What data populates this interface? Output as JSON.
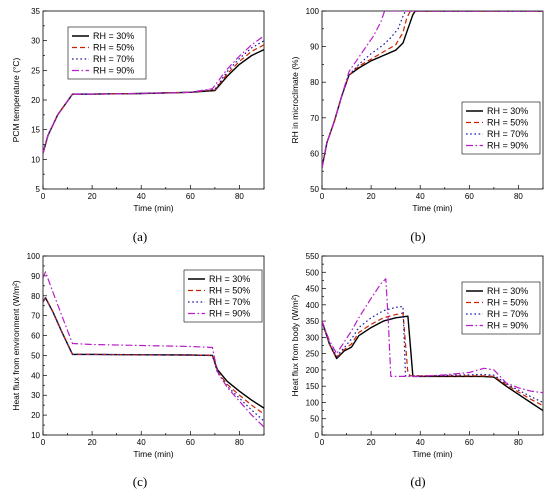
{
  "legend_labels": [
    "RH = 30%",
    "RH = 50%",
    "RH = 70%",
    "RH = 90%"
  ],
  "series_colors": [
    "#000000",
    "#cc2200",
    "#1a1aa8",
    "#b81fc8"
  ],
  "chart_data": [
    {
      "panel": "(a)",
      "type": "line",
      "xlabel": "Time (min)",
      "ylabel": "PCM temperature (°C)",
      "xlim": [
        0,
        90
      ],
      "ylim": [
        5,
        35
      ],
      "xticks": [
        0,
        20,
        40,
        60,
        80
      ],
      "yticks": [
        5,
        10,
        15,
        20,
        25,
        30,
        35
      ],
      "legend_position": "top-left",
      "grid": false,
      "series": [
        {
          "name": "RH = 30%",
          "x": [
            0,
            2,
            6,
            12,
            20,
            40,
            60,
            70,
            75,
            80,
            85,
            90
          ],
          "y": [
            11,
            14,
            17.5,
            21,
            21,
            21.1,
            21.3,
            21.6,
            24,
            26,
            27.5,
            28.5
          ]
        },
        {
          "name": "RH = 50%",
          "x": [
            0,
            2,
            6,
            12,
            20,
            40,
            60,
            70,
            75,
            80,
            85,
            90
          ],
          "y": [
            11,
            14,
            17.5,
            21,
            21,
            21.1,
            21.3,
            21.7,
            24.4,
            26.5,
            28.2,
            29.3
          ]
        },
        {
          "name": "RH = 70%",
          "x": [
            0,
            2,
            6,
            12,
            20,
            40,
            60,
            70,
            75,
            80,
            85,
            90
          ],
          "y": [
            11,
            14,
            17.5,
            21,
            21,
            21.1,
            21.3,
            21.8,
            24.8,
            27,
            28.8,
            30
          ]
        },
        {
          "name": "RH = 90%",
          "x": [
            0,
            2,
            6,
            12,
            20,
            40,
            60,
            69,
            75,
            80,
            85,
            90
          ],
          "y": [
            11,
            14,
            17.5,
            21,
            21,
            21.1,
            21.3,
            21.9,
            25.2,
            27.4,
            29.3,
            30.8
          ]
        }
      ]
    },
    {
      "panel": "(b)",
      "type": "line",
      "xlabel": "Time (min)",
      "ylabel": "RH in microclimate (%)",
      "xlim": [
        0,
        90
      ],
      "ylim": [
        50,
        100
      ],
      "xticks": [
        0,
        20,
        40,
        60,
        80
      ],
      "yticks": [
        50,
        60,
        70,
        80,
        90,
        100
      ],
      "legend_position": "bottom-right",
      "grid": false,
      "series": [
        {
          "name": "RH = 30%",
          "x": [
            0,
            2,
            5,
            8,
            11,
            15,
            20,
            25,
            30,
            33,
            35,
            37,
            38,
            50,
            90
          ],
          "y": [
            56,
            63,
            69,
            76,
            82,
            84,
            86,
            87.5,
            89,
            91,
            95,
            99,
            100,
            100,
            100
          ]
        },
        {
          "name": "RH = 50%",
          "x": [
            0,
            2,
            5,
            8,
            11,
            15,
            20,
            25,
            30,
            33,
            34.5,
            36,
            50,
            90
          ],
          "y": [
            56,
            63,
            69,
            76,
            82,
            84.5,
            86.5,
            88.5,
            90.5,
            94,
            98,
            100,
            100,
            100
          ]
        },
        {
          "name": "RH = 70%",
          "x": [
            0,
            2,
            5,
            8,
            11,
            15,
            20,
            25,
            28,
            31,
            33,
            34,
            50,
            90
          ],
          "y": [
            56,
            63,
            69,
            76,
            82,
            85,
            88,
            90.5,
            92.5,
            95,
            98.5,
            100,
            100,
            100
          ]
        },
        {
          "name": "RH = 90%",
          "x": [
            0,
            2,
            5,
            8,
            11,
            15,
            18,
            21,
            24,
            25.5,
            50,
            90
          ],
          "y": [
            56,
            63,
            69,
            76,
            83,
            87,
            90,
            93,
            97,
            100,
            100,
            100
          ]
        }
      ]
    },
    {
      "panel": "(c)",
      "type": "line",
      "xlabel": "Time (min)",
      "ylabel": "Heat flux from environment (W/m²)",
      "xlim": [
        0,
        90
      ],
      "ylim": [
        10,
        100
      ],
      "xticks": [
        0,
        20,
        40,
        60,
        80
      ],
      "yticks": [
        10,
        20,
        30,
        40,
        50,
        60,
        70,
        80,
        90,
        100
      ],
      "legend_position": "top-right",
      "grid": false,
      "series": [
        {
          "name": "RH = 30%",
          "x": [
            0,
            1,
            4,
            8,
            12,
            20,
            40,
            60,
            69,
            71,
            75,
            80,
            85,
            90
          ],
          "y": [
            77,
            79,
            72,
            61,
            50.5,
            50.5,
            50.3,
            50.2,
            50,
            43,
            37,
            32,
            27.5,
            23.5
          ]
        },
        {
          "name": "RH = 50%",
          "x": [
            0,
            1,
            4,
            8,
            12,
            20,
            40,
            60,
            69,
            71,
            75,
            80,
            85,
            90
          ],
          "y": [
            77,
            79,
            72,
            61,
            50.5,
            50.5,
            50.3,
            50.2,
            50,
            42,
            35.5,
            30,
            25,
            20.5
          ]
        },
        {
          "name": "RH = 70%",
          "x": [
            0,
            1,
            4,
            8,
            12,
            20,
            40,
            60,
            69,
            71,
            75,
            80,
            85,
            90
          ],
          "y": [
            77,
            79,
            72,
            61,
            50.5,
            50.5,
            50.3,
            50.2,
            50,
            41.5,
            34.5,
            28.5,
            22.5,
            17
          ]
        },
        {
          "name": "RH = 90%",
          "x": [
            0,
            1,
            4,
            8,
            12,
            20,
            40,
            60,
            69,
            71,
            75,
            80,
            85,
            90
          ],
          "y": [
            89,
            92,
            82,
            69,
            56,
            55.5,
            55,
            54.5,
            54,
            42,
            34,
            27,
            20,
            14
          ]
        }
      ]
    },
    {
      "panel": "(d)",
      "type": "line",
      "xlabel": "Time (min)",
      "ylabel": "Heat flux from body (W/m²)",
      "xlim": [
        0,
        90
      ],
      "ylim": [
        0,
        550
      ],
      "xticks": [
        0,
        20,
        40,
        60,
        80
      ],
      "yticks": [
        0,
        50,
        100,
        150,
        200,
        250,
        300,
        350,
        400,
        450,
        500,
        550
      ],
      "legend_position": "top-right",
      "grid": false,
      "series": [
        {
          "name": "RH = 30%",
          "x": [
            0,
            3,
            6,
            9,
            12,
            15,
            20,
            25,
            30,
            35,
            37,
            38,
            45,
            55,
            65,
            70,
            75,
            80,
            85,
            90
          ],
          "y": [
            350,
            280,
            235,
            258,
            270,
            305,
            330,
            350,
            360,
            365,
            180,
            180,
            180,
            180,
            180,
            178,
            150,
            125,
            100,
            75
          ]
        },
        {
          "name": "RH = 50%",
          "x": [
            0,
            3,
            6,
            9,
            12,
            15,
            20,
            25,
            30,
            33,
            35,
            36,
            45,
            55,
            65,
            70,
            75,
            80,
            85,
            90
          ],
          "y": [
            350,
            280,
            238,
            262,
            280,
            315,
            340,
            360,
            370,
            375,
            190,
            182,
            182,
            182,
            182,
            180,
            155,
            132,
            110,
            90
          ]
        },
        {
          "name": "RH = 70%",
          "x": [
            0,
            3,
            6,
            9,
            12,
            15,
            20,
            25,
            30,
            33,
            34,
            45,
            55,
            65,
            70,
            75,
            80,
            85,
            90
          ],
          "y": [
            350,
            280,
            242,
            268,
            295,
            330,
            360,
            382,
            392,
            395,
            182,
            182,
            184,
            186,
            184,
            158,
            138,
            118,
            100
          ]
        },
        {
          "name": "RH = 90%",
          "x": [
            0,
            3,
            6,
            9,
            12,
            15,
            20,
            24,
            26,
            27,
            28,
            40,
            50,
            60,
            66,
            70,
            75,
            80,
            85,
            90
          ],
          "y": [
            350,
            290,
            250,
            285,
            320,
            360,
            420,
            465,
            480,
            350,
            180,
            180,
            185,
            192,
            205,
            200,
            160,
            145,
            135,
            130
          ]
        }
      ]
    }
  ]
}
